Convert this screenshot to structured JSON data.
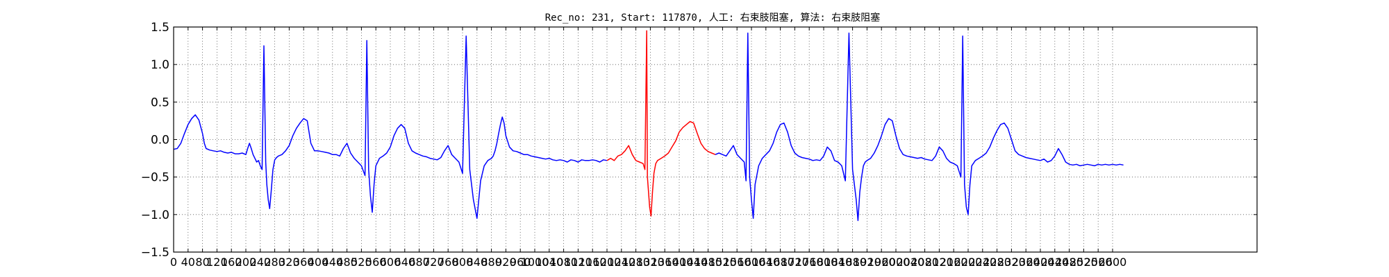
{
  "chart_data": {
    "type": "line",
    "title": "Rec_no: 231, Start: 117870, 人工: 右束肢阻塞, 算法: 右束肢阻塞",
    "xlabel": "",
    "ylabel": "",
    "xlim": [
      0,
      3000
    ],
    "ylim": [
      -1.5,
      1.5
    ],
    "grid": true,
    "x_ticks": [
      0,
      40,
      80,
      120,
      160,
      200,
      240,
      280,
      320,
      360,
      400,
      440,
      480,
      520,
      560,
      600,
      640,
      680,
      720,
      760,
      800,
      840,
      880,
      920,
      960,
      1000,
      1040,
      1080,
      1120,
      1160,
      1200,
      1240,
      1280,
      1320,
      1360,
      1400,
      1440,
      1480,
      1520,
      1560,
      1600,
      1640,
      1680,
      1720,
      1760,
      1800,
      1840,
      1880,
      1920,
      1960,
      2000,
      2040,
      2080,
      2120,
      2160,
      2200,
      2240,
      2280,
      2320,
      2360,
      2400,
      2440,
      2480,
      2520,
      2560,
      2600
    ],
    "y_ticks": [
      1.5,
      1.0,
      0.5,
      0.0,
      -0.5,
      -1.0,
      -1.5
    ],
    "y_tick_labels": [
      "1.5",
      "1.0",
      "0.5",
      "0.0",
      "−0.5",
      "−1.0",
      "−1.5"
    ],
    "series": [
      {
        "color": "#0000ff",
        "segments": [
          {
            "x": [
              0,
              10,
              20,
              30,
              40,
              50,
              60,
              70,
              80,
              85,
              90,
              100,
              110,
              120,
              130,
              140,
              150,
              160,
              170,
              180,
              190,
              200,
              205,
              210,
              215,
              220,
              225,
              230,
              235,
              240,
              245,
              250,
              255,
              258,
              262,
              266,
              270,
              275,
              280,
              285,
              290,
              300,
              310,
              320,
              330,
              340,
              350,
              360,
              370,
              375,
              380,
              385,
              390,
              400,
              410,
              420,
              430,
              440,
              450,
              460,
              470,
              480,
              490,
              500,
              510,
              520,
              530,
              535,
              540,
              545,
              550,
              555,
              560,
              570,
              580,
              590,
              600,
              610,
              620,
              630,
              640,
              650,
              660,
              670,
              680,
              690,
              700,
              710,
              720,
              730,
              740,
              750,
              760,
              770,
              780,
              790,
              800,
              810,
              820,
              830,
              840,
              850,
              860,
              870,
              880,
              885,
              890,
              895,
              900,
              905,
              910,
              915,
              920,
              930,
              940,
              950,
              960,
              970,
              980,
              990,
              1000,
              1010,
              1020,
              1030,
              1040,
              1050,
              1060,
              1070,
              1080,
              1090,
              1100,
              1110,
              1120,
              1130,
              1140,
              1150,
              1160,
              1170,
              1180,
              1190,
              1200
            ],
            "y": [
              -0.13,
              -0.12,
              -0.05,
              0.08,
              0.2,
              0.28,
              0.33,
              0.26,
              0.08,
              -0.05,
              -0.12,
              -0.14,
              -0.15,
              -0.16,
              -0.15,
              -0.17,
              -0.18,
              -0.17,
              -0.19,
              -0.19,
              -0.18,
              -0.2,
              -0.12,
              -0.05,
              -0.12,
              -0.2,
              -0.25,
              -0.3,
              -0.28,
              -0.35,
              -0.4,
              1.25,
              -0.3,
              -0.6,
              -0.8,
              -0.92,
              -0.7,
              -0.4,
              -0.27,
              -0.24,
              -0.22,
              -0.2,
              -0.15,
              -0.08,
              0.05,
              0.15,
              0.22,
              0.28,
              0.25,
              0.1,
              -0.05,
              -0.1,
              -0.15,
              -0.15,
              -0.16,
              -0.17,
              -0.18,
              -0.2,
              -0.2,
              -0.22,
              -0.12,
              -0.05,
              -0.18,
              -0.25,
              -0.3,
              -0.35,
              -0.48,
              1.32,
              -0.4,
              -0.75,
              -0.97,
              -0.6,
              -0.35,
              -0.25,
              -0.22,
              -0.18,
              -0.1,
              0.05,
              0.15,
              0.2,
              0.15,
              -0.05,
              -0.15,
              -0.18,
              -0.2,
              -0.22,
              -0.23,
              -0.25,
              -0.26,
              -0.27,
              -0.24,
              -0.15,
              -0.08,
              -0.2,
              -0.25,
              -0.3,
              -0.45,
              1.38,
              -0.4,
              -0.8,
              -1.05,
              -0.55,
              -0.35,
              -0.28,
              -0.25,
              -0.22,
              -0.15,
              -0.05,
              0.08,
              0.2,
              0.3,
              0.22,
              0.05,
              -0.1,
              -0.15,
              -0.16,
              -0.18,
              -0.2,
              -0.2,
              -0.22,
              -0.23,
              -0.24,
              -0.25,
              -0.26,
              -0.25,
              -0.27,
              -0.28,
              -0.27,
              -0.28,
              -0.3,
              -0.27,
              -0.28,
              -0.3,
              -0.27,
              -0.28,
              -0.28,
              -0.27,
              -0.28,
              -0.3,
              -0.27,
              -0.28
            ]
          }
        ]
      },
      {
        "color": "#ff0000",
        "segments": [
          {
            "x": [
              1200,
              1210,
              1220,
              1230,
              1240,
              1250,
              1260,
              1270,
              1280,
              1290,
              1300,
              1305,
              1310,
              1312,
              1315,
              1318,
              1322,
              1326,
              1330,
              1335,
              1340,
              1350,
              1360,
              1370,
              1380,
              1390,
              1400,
              1410,
              1420,
              1430,
              1440,
              1450,
              1460,
              1470,
              1480,
              1490,
              1500
            ],
            "y": [
              -0.28,
              -0.25,
              -0.28,
              -0.22,
              -0.2,
              -0.15,
              -0.08,
              -0.2,
              -0.28,
              -0.3,
              -0.32,
              -0.4,
              1.45,
              -0.5,
              -0.7,
              -0.9,
              -1.02,
              -0.7,
              -0.45,
              -0.32,
              -0.28,
              -0.25,
              -0.22,
              -0.18,
              -0.1,
              -0.02,
              0.1,
              0.16,
              0.2,
              0.24,
              0.22,
              0.08,
              -0.05,
              -0.12,
              -0.16,
              -0.18,
              -0.2
            ]
          }
        ]
      },
      {
        "color": "#0000ff",
        "segments": [
          {
            "x": [
              1500,
              1510,
              1520,
              1530,
              1540,
              1550,
              1560,
              1570,
              1580,
              1585,
              1590,
              1595,
              1600,
              1605,
              1610,
              1620,
              1630,
              1640,
              1650,
              1660,
              1670,
              1680,
              1690,
              1700,
              1710,
              1720,
              1730,
              1740,
              1750,
              1760,
              1770,
              1780,
              1790,
              1800,
              1810,
              1820,
              1830,
              1840,
              1850,
              1860,
              1870,
              1880,
              1890,
              1895,
              1900,
              1905,
              1910,
              1915,
              1920,
              1930,
              1940,
              1950,
              1960,
              1970,
              1980,
              1990,
              2000,
              2010,
              2020,
              2030,
              2040,
              2050,
              2060,
              2070,
              2080,
              2090,
              2100,
              2110,
              2120,
              2130,
              2140,
              2150,
              2160,
              2170,
              2180,
              2185,
              2190,
              2195,
              2200,
              2205,
              2210,
              2220,
              2230,
              2240,
              2250,
              2260,
              2270,
              2280,
              2290,
              2300,
              2310,
              2320,
              2330,
              2340,
              2350,
              2360,
              2370,
              2380,
              2390,
              2400,
              2410,
              2420,
              2430,
              2440,
              2450,
              2460,
              2470,
              2480,
              2490,
              2500,
              2510,
              2520,
              2530,
              2540,
              2550,
              2560,
              2570,
              2580,
              2590,
              2600,
              2610,
              2620,
              2630
            ],
            "y": [
              -0.2,
              -0.18,
              -0.2,
              -0.22,
              -0.15,
              -0.08,
              -0.2,
              -0.25,
              -0.3,
              -0.55,
              1.42,
              -0.5,
              -0.8,
              -1.05,
              -0.6,
              -0.35,
              -0.25,
              -0.2,
              -0.15,
              -0.05,
              0.1,
              0.2,
              0.22,
              0.1,
              -0.08,
              -0.18,
              -0.22,
              -0.24,
              -0.25,
              -0.26,
              -0.28,
              -0.27,
              -0.28,
              -0.22,
              -0.1,
              -0.15,
              -0.28,
              -0.3,
              -0.35,
              -0.55,
              1.42,
              -0.4,
              -0.8,
              -1.08,
              -0.7,
              -0.5,
              -0.35,
              -0.3,
              -0.28,
              -0.25,
              -0.18,
              -0.08,
              0.05,
              0.2,
              0.28,
              0.25,
              0.05,
              -0.12,
              -0.2,
              -0.22,
              -0.23,
              -0.24,
              -0.25,
              -0.24,
              -0.26,
              -0.27,
              -0.28,
              -0.22,
              -0.1,
              -0.15,
              -0.25,
              -0.3,
              -0.32,
              -0.35,
              -0.5,
              1.38,
              -0.6,
              -0.9,
              -1.0,
              -0.6,
              -0.35,
              -0.28,
              -0.25,
              -0.22,
              -0.18,
              -0.1,
              0.02,
              0.12,
              0.2,
              0.22,
              0.15,
              0.0,
              -0.15,
              -0.2,
              -0.22,
              -0.24,
              -0.25,
              -0.26,
              -0.27,
              -0.28,
              -0.26,
              -0.3,
              -0.28,
              -0.22,
              -0.12,
              -0.2,
              -0.3,
              -0.33,
              -0.34,
              -0.33,
              -0.35,
              -0.34,
              -0.33,
              -0.34,
              -0.35,
              -0.33,
              -0.34,
              -0.33,
              -0.34,
              -0.33,
              -0.34,
              -0.33,
              -0.34
            ]
          }
        ]
      }
    ]
  }
}
